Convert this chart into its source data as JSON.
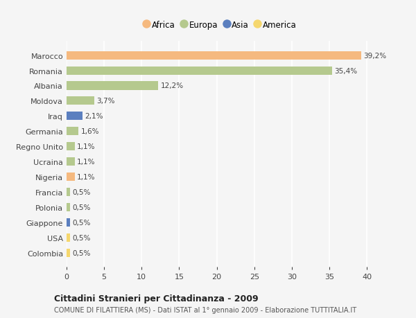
{
  "countries": [
    "Marocco",
    "Romania",
    "Albania",
    "Moldova",
    "Iraq",
    "Germania",
    "Regno Unito",
    "Ucraina",
    "Nigeria",
    "Francia",
    "Polonia",
    "Giappone",
    "USA",
    "Colombia"
  ],
  "values": [
    39.2,
    35.4,
    12.2,
    3.7,
    2.1,
    1.6,
    1.1,
    1.1,
    1.1,
    0.5,
    0.5,
    0.5,
    0.5,
    0.5
  ],
  "labels": [
    "39,2%",
    "35,4%",
    "12,2%",
    "3,7%",
    "2,1%",
    "1,6%",
    "1,1%",
    "1,1%",
    "1,1%",
    "0,5%",
    "0,5%",
    "0,5%",
    "0,5%",
    "0,5%"
  ],
  "continents": [
    "Africa",
    "Europa",
    "Europa",
    "Europa",
    "Asia",
    "Europa",
    "Europa",
    "Europa",
    "Africa",
    "Europa",
    "Europa",
    "Asia",
    "America",
    "America"
  ],
  "continent_colors": {
    "Africa": "#F5B97F",
    "Europa": "#B5C98E",
    "Asia": "#5B7FBF",
    "America": "#F5D76E"
  },
  "legend_order": [
    "Africa",
    "Europa",
    "Asia",
    "America"
  ],
  "bg_color": "#f5f5f5",
  "grid_color": "#ffffff",
  "title": "Cittadini Stranieri per Cittadinanza - 2009",
  "subtitle": "COMUNE DI FILATTIERA (MS) - Dati ISTAT al 1° gennaio 2009 - Elaborazione TUTTITALIA.IT",
  "xlim": [
    0,
    41
  ],
  "xticks": [
    0,
    5,
    10,
    15,
    20,
    25,
    30,
    35,
    40
  ]
}
